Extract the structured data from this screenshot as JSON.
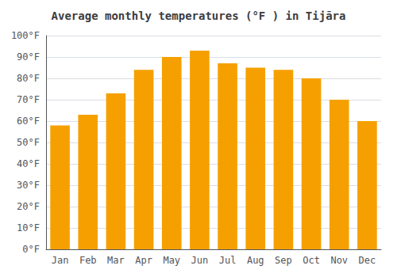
{
  "chart_data": {
    "type": "bar",
    "title": "Average monthly temperatures (°F ) in Tijāra",
    "categories": [
      "Jan",
      "Feb",
      "Mar",
      "Apr",
      "May",
      "Jun",
      "Jul",
      "Aug",
      "Sep",
      "Oct",
      "Nov",
      "Dec"
    ],
    "values": [
      58,
      63,
      73,
      84,
      90,
      93,
      87,
      85,
      84,
      80,
      70,
      60
    ],
    "color": "#F5A000",
    "ylim": [
      0,
      100
    ],
    "yticks": [
      {
        "value": 0,
        "label": "0°F"
      },
      {
        "value": 10,
        "label": "10°F"
      },
      {
        "value": 20,
        "label": "20°F"
      },
      {
        "value": 30,
        "label": "30°F"
      },
      {
        "value": 40,
        "label": "40°F"
      },
      {
        "value": 50,
        "label": "50°F"
      },
      {
        "value": 60,
        "label": "60°F"
      },
      {
        "value": 70,
        "label": "70°F"
      },
      {
        "value": 80,
        "label": "80°F"
      },
      {
        "value": 90,
        "label": "90°F"
      },
      {
        "value": 100,
        "label": "100°F"
      }
    ],
    "grid": true
  }
}
